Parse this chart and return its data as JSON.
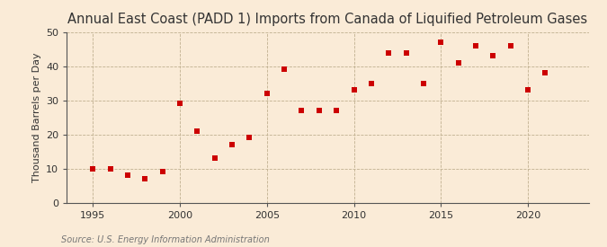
{
  "title": "Annual East Coast (PADD 1) Imports from Canada of Liquified Petroleum Gases",
  "ylabel": "Thousand Barrels per Day",
  "source": "Source: U.S. Energy Information Administration",
  "background_color": "#faebd7",
  "plot_bg_color": "#faebd7",
  "marker_color": "#cc0000",
  "years": [
    1995,
    1996,
    1997,
    1998,
    1999,
    2000,
    2001,
    2002,
    2003,
    2004,
    2005,
    2006,
    2007,
    2008,
    2009,
    2010,
    2011,
    2012,
    2013,
    2014,
    2015,
    2016,
    2017,
    2018,
    2019,
    2020,
    2021
  ],
  "values": [
    10,
    10,
    8,
    7,
    9,
    29,
    21,
    13,
    17,
    19,
    32,
    39,
    27,
    27,
    27,
    33,
    35,
    44,
    44,
    35,
    47,
    41,
    46,
    43,
    46,
    33,
    38
  ],
  "xlim": [
    1993.5,
    2023.5
  ],
  "ylim": [
    0,
    50
  ],
  "xticks": [
    1995,
    2000,
    2005,
    2010,
    2015,
    2020
  ],
  "yticks": [
    0,
    10,
    20,
    30,
    40,
    50
  ],
  "vgrid_ticks": [
    1995,
    2000,
    2005,
    2010,
    2015,
    2020
  ],
  "title_fontsize": 10.5,
  "label_fontsize": 8,
  "tick_fontsize": 8,
  "source_fontsize": 7
}
